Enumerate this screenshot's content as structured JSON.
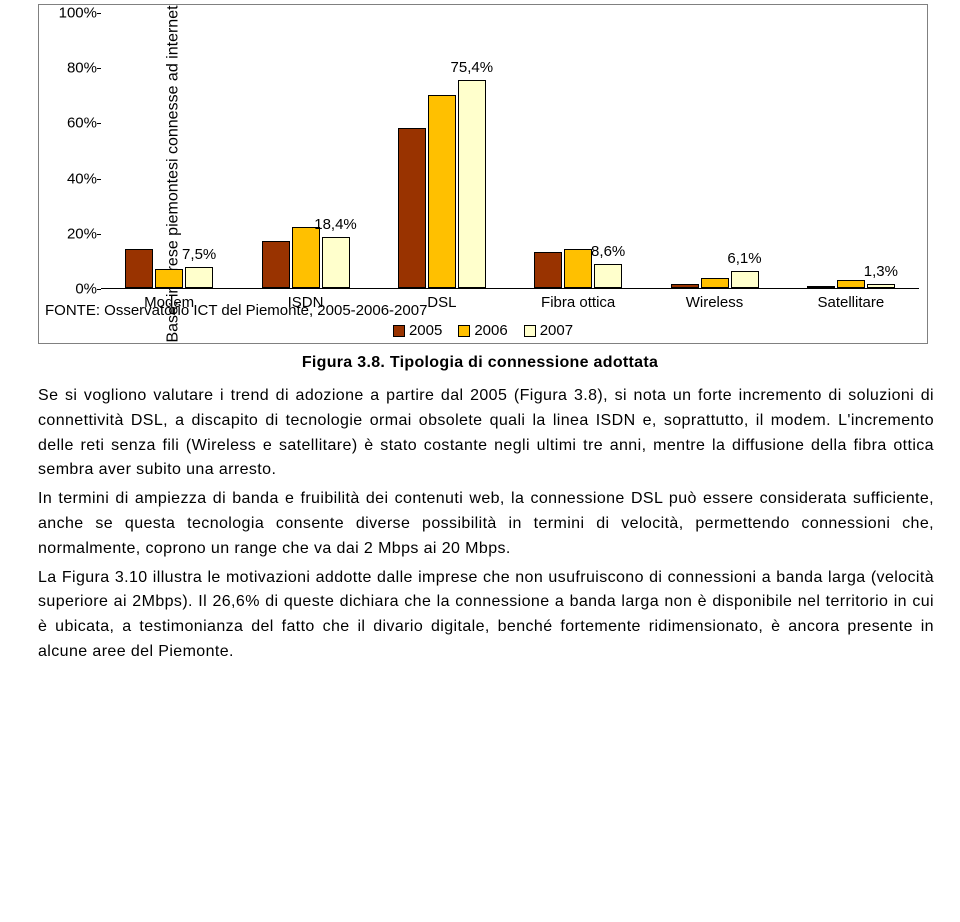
{
  "chart": {
    "type": "bar",
    "ylabel": "Base: imprese piemontesi connesse ad internet",
    "ylim": [
      0,
      100
    ],
    "ytick_step": 20,
    "ytick_suffix": "%",
    "categories": [
      "Modem",
      "ISDN",
      "DSL",
      "Fibra ottica",
      "Wireless",
      "Satellitare"
    ],
    "series": [
      {
        "name": "2005",
        "color": "#993300",
        "values": [
          14,
          17,
          58,
          13,
          1.5,
          0.6
        ]
      },
      {
        "name": "2006",
        "color": "#ffc000",
        "values": [
          7,
          22,
          70,
          14,
          3.5,
          3.0
        ]
      },
      {
        "name": "2007",
        "color": "#ffffcc",
        "values": [
          7.5,
          18.4,
          75.4,
          8.6,
          6.1,
          1.3
        ]
      }
    ],
    "value_labels": [
      "7,5%",
      "18,4%",
      "75,4%",
      "8,6%",
      "6,1%",
      "1,3%"
    ],
    "source": "FONTE: Osservatorio ICT del Piemonte, 2005-2006-2007",
    "background_color": "#ffffff",
    "bar_border_color": "#000000",
    "axis_color": "#000000",
    "label_fontsize": 15
  },
  "caption": "Figura 3.8. Tipologia di connessione adottata",
  "paragraphs": [
    "Se si vogliono valutare i trend di adozione a partire dal 2005 (Figura 3.8), si nota un forte incremento di soluzioni di connettività DSL, a discapito di tecnologie ormai obsolete quali la linea ISDN e, soprattutto, il modem. L'incremento delle reti senza fili (Wireless e satellitare) è stato costante negli ultimi tre anni, mentre la diffusione della fibra ottica sembra aver subito una arresto.",
    "In termini di ampiezza di banda e fruibilità dei contenuti web, la connessione DSL può essere considerata sufficiente, anche se questa tecnologia consente diverse possibilità in termini di velocità, permettendo connessioni che, normalmente, coprono un range che va dai 2 Mbps ai 20 Mbps.",
    "La Figura 3.10 illustra le motivazioni addotte dalle imprese che non usufruiscono di connessioni a banda larga (velocità superiore ai 2Mbps). Il 26,6% di queste dichiara che la connessione a banda larga non è disponibile nel territorio in cui è ubicata, a testimonianza del fatto che il divario digitale, benché fortemente ridimensionato, è ancora presente in alcune aree del Piemonte."
  ]
}
